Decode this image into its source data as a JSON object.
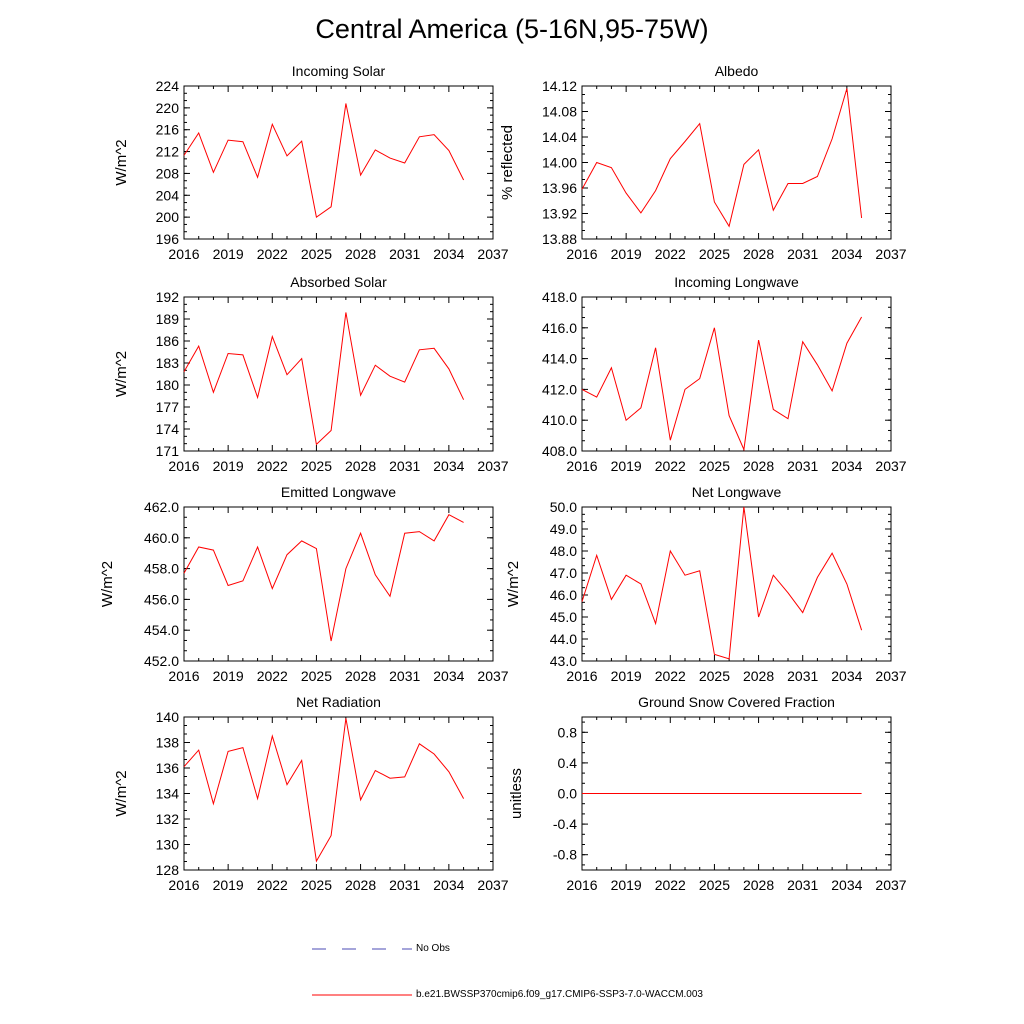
{
  "title": "Central America (5-16N,95-75W)",
  "colors": {
    "model_line": "#ff0000",
    "obs_line": "#4b4bb4",
    "axis": "#000000"
  },
  "legend": {
    "obs_label": "No Obs",
    "model_label": "b.e21.BWSSP370cmip6.f09_g17.CMIP6-SSP3-7.0-WACCM.003"
  },
  "chart_data": [
    {
      "type": "line",
      "title": "Incoming Solar",
      "ylabel": "W/m^2",
      "xlim": [
        2016,
        2037
      ],
      "xticks": [
        "2016",
        "2019",
        "2022",
        "2025",
        "2028",
        "2031",
        "2034",
        "2037"
      ],
      "ylim": [
        196,
        224
      ],
      "yticks": [
        "196",
        "200",
        "204",
        "208",
        "212",
        "216",
        "220",
        "224"
      ],
      "series": [
        {
          "name": "b.e21.BWSSP370cmip6.f09_g17.CMIP6-SSP3-7.0-WACCM.003",
          "x": [
            2016,
            2017,
            2018,
            2019,
            2020,
            2021,
            2022,
            2023,
            2024,
            2025,
            2026,
            2027,
            2028,
            2029,
            2030,
            2031,
            2032,
            2033,
            2034,
            2035
          ],
          "values": [
            211.3,
            215.4,
            208.2,
            214.1,
            213.8,
            207.3,
            217.0,
            211.2,
            213.9,
            200.0,
            201.9,
            220.8,
            207.7,
            212.3,
            210.8,
            209.9,
            214.7,
            215.1,
            212.2,
            206.8
          ]
        }
      ]
    },
    {
      "type": "line",
      "title": "Albedo",
      "ylabel": "% reflected",
      "xlim": [
        2016,
        2037
      ],
      "xticks": [
        "2016",
        "2019",
        "2022",
        "2025",
        "2028",
        "2031",
        "2034",
        "2037"
      ],
      "ylim": [
        13.88,
        14.12
      ],
      "yticks": [
        "13.88",
        "13.92",
        "13.96",
        "14.00",
        "14.04",
        "14.08",
        "14.12"
      ],
      "series": [
        {
          "name": "b.e21.BWSSP370cmip6.f09_g17.CMIP6-SSP3-7.0-WACCM.003",
          "x": [
            2016,
            2017,
            2018,
            2019,
            2020,
            2021,
            2022,
            2023,
            2024,
            2025,
            2026,
            2027,
            2028,
            2029,
            2030,
            2031,
            2032,
            2033,
            2034,
            2035
          ],
          "values": [
            13.958,
            14.0,
            13.992,
            13.952,
            13.921,
            13.956,
            14.006,
            14.033,
            14.061,
            13.938,
            13.9,
            13.997,
            14.02,
            13.925,
            13.967,
            13.967,
            13.978,
            14.037,
            14.116,
            13.913
          ]
        }
      ]
    },
    {
      "type": "line",
      "title": "Absorbed Solar",
      "ylabel": "W/m^2",
      "xlim": [
        2016,
        2037
      ],
      "xticks": [
        "2016",
        "2019",
        "2022",
        "2025",
        "2028",
        "2031",
        "2034",
        "2037"
      ],
      "ylim": [
        171,
        192
      ],
      "yticks": [
        "171",
        "174",
        "177",
        "180",
        "183",
        "186",
        "189",
        "192"
      ],
      "series": [
        {
          "name": "b.e21.BWSSP370cmip6.f09_g17.CMIP6-SSP3-7.0-WACCM.003",
          "x": [
            2016,
            2017,
            2018,
            2019,
            2020,
            2021,
            2022,
            2023,
            2024,
            2025,
            2026,
            2027,
            2028,
            2029,
            2030,
            2031,
            2032,
            2033,
            2034,
            2035
          ],
          "values": [
            181.8,
            185.3,
            179.0,
            184.3,
            184.1,
            178.3,
            186.6,
            181.4,
            183.6,
            171.9,
            173.8,
            189.9,
            178.6,
            182.7,
            181.2,
            180.4,
            184.8,
            185.0,
            182.2,
            178.0
          ]
        }
      ]
    },
    {
      "type": "line",
      "title": "Incoming Longwave",
      "ylabel": "",
      "xlim": [
        2016,
        2037
      ],
      "xticks": [
        "2016",
        "2019",
        "2022",
        "2025",
        "2028",
        "2031",
        "2034",
        "2037"
      ],
      "ylim": [
        408.0,
        418.0
      ],
      "yticks": [
        "408.0",
        "410.0",
        "412.0",
        "414.0",
        "416.0",
        "418.0"
      ],
      "series": [
        {
          "name": "b.e21.BWSSP370cmip6.f09_g17.CMIP6-SSP3-7.0-WACCM.003",
          "x": [
            2016,
            2017,
            2018,
            2019,
            2020,
            2021,
            2022,
            2023,
            2024,
            2025,
            2026,
            2027,
            2028,
            2029,
            2030,
            2031,
            2032,
            2033,
            2034,
            2035
          ],
          "values": [
            412.0,
            411.5,
            413.4,
            410.0,
            410.8,
            414.7,
            408.7,
            412.0,
            412.7,
            416.0,
            410.3,
            408.1,
            415.2,
            410.7,
            410.1,
            415.1,
            413.6,
            411.9,
            415.0,
            416.7
          ]
        }
      ]
    },
    {
      "type": "line",
      "title": "Emitted Longwave",
      "ylabel": "W/m^2",
      "xlim": [
        2016,
        2037
      ],
      "xticks": [
        "2016",
        "2019",
        "2022",
        "2025",
        "2028",
        "2031",
        "2034",
        "2037"
      ],
      "ylim": [
        452.0,
        462.0
      ],
      "yticks": [
        "452.0",
        "454.0",
        "456.0",
        "458.0",
        "460.0",
        "462.0"
      ],
      "series": [
        {
          "name": "b.e21.BWSSP370cmip6.f09_g17.CMIP6-SSP3-7.0-WACCM.003",
          "x": [
            2016,
            2017,
            2018,
            2019,
            2020,
            2021,
            2022,
            2023,
            2024,
            2025,
            2026,
            2027,
            2028,
            2029,
            2030,
            2031,
            2032,
            2033,
            2034,
            2035
          ],
          "values": [
            457.7,
            459.4,
            459.2,
            456.9,
            457.2,
            459.4,
            456.7,
            458.9,
            459.8,
            459.3,
            453.3,
            458.0,
            460.3,
            457.6,
            456.2,
            460.3,
            460.4,
            459.8,
            461.5,
            461.0
          ]
        }
      ]
    },
    {
      "type": "line",
      "title": "Net Longwave",
      "ylabel": "W/m^2",
      "xlim": [
        2016,
        2037
      ],
      "xticks": [
        "2016",
        "2019",
        "2022",
        "2025",
        "2028",
        "2031",
        "2034",
        "2037"
      ],
      "ylim": [
        43.0,
        50.0
      ],
      "yticks": [
        "43.0",
        "44.0",
        "45.0",
        "46.0",
        "47.0",
        "48.0",
        "49.0",
        "50.0"
      ],
      "series": [
        {
          "name": "b.e21.BWSSP370cmip6.f09_g17.CMIP6-SSP3-7.0-WACCM.003",
          "x": [
            2016,
            2017,
            2018,
            2019,
            2020,
            2021,
            2022,
            2023,
            2024,
            2025,
            2026,
            2027,
            2028,
            2029,
            2030,
            2031,
            2032,
            2033,
            2034,
            2035
          ],
          "values": [
            45.7,
            47.8,
            45.8,
            46.9,
            46.5,
            44.7,
            48.0,
            46.9,
            47.1,
            43.3,
            43.1,
            50.0,
            45.0,
            46.9,
            46.1,
            45.2,
            46.8,
            47.9,
            46.5,
            44.4
          ]
        }
      ]
    },
    {
      "type": "line",
      "title": "Net Radiation",
      "ylabel": "W/m^2",
      "xlim": [
        2016,
        2037
      ],
      "xticks": [
        "2016",
        "2019",
        "2022",
        "2025",
        "2028",
        "2031",
        "2034",
        "2037"
      ],
      "ylim": [
        128,
        140
      ],
      "yticks": [
        "128",
        "130",
        "132",
        "134",
        "136",
        "138",
        "140"
      ],
      "series": [
        {
          "name": "b.e21.BWSSP370cmip6.f09_g17.CMIP6-SSP3-7.0-WACCM.003",
          "x": [
            2016,
            2017,
            2018,
            2019,
            2020,
            2021,
            2022,
            2023,
            2024,
            2025,
            2026,
            2027,
            2028,
            2029,
            2030,
            2031,
            2032,
            2033,
            2034,
            2035
          ],
          "values": [
            136.1,
            137.4,
            133.2,
            137.3,
            137.6,
            133.6,
            138.5,
            134.7,
            136.6,
            128.7,
            130.7,
            139.9,
            133.5,
            135.8,
            135.2,
            135.3,
            137.9,
            137.1,
            135.7,
            133.6
          ]
        }
      ]
    },
    {
      "type": "line",
      "title": "Ground Snow Covered Fraction",
      "ylabel": "unitless",
      "xlim": [
        2016,
        2037
      ],
      "xticks": [
        "2016",
        "2019",
        "2022",
        "2025",
        "2028",
        "2031",
        "2034",
        "2037"
      ],
      "ylim": [
        -1.0,
        1.0
      ],
      "yticks": [
        "-0.8",
        "-0.4",
        "0.0",
        "0.4",
        "0.8"
      ],
      "ytick_values": [
        -0.8,
        -0.4,
        0.0,
        0.4,
        0.8
      ],
      "series": [
        {
          "name": "b.e21.BWSSP370cmip6.f09_g17.CMIP6-SSP3-7.0-WACCM.003",
          "x": [
            2016,
            2017,
            2018,
            2019,
            2020,
            2021,
            2022,
            2023,
            2024,
            2025,
            2026,
            2027,
            2028,
            2029,
            2030,
            2031,
            2032,
            2033,
            2034,
            2035
          ],
          "values": [
            0,
            0,
            0,
            0,
            0,
            0,
            0,
            0,
            0,
            0,
            0,
            0,
            0,
            0,
            0,
            0,
            0,
            0,
            0,
            0
          ]
        }
      ]
    }
  ]
}
